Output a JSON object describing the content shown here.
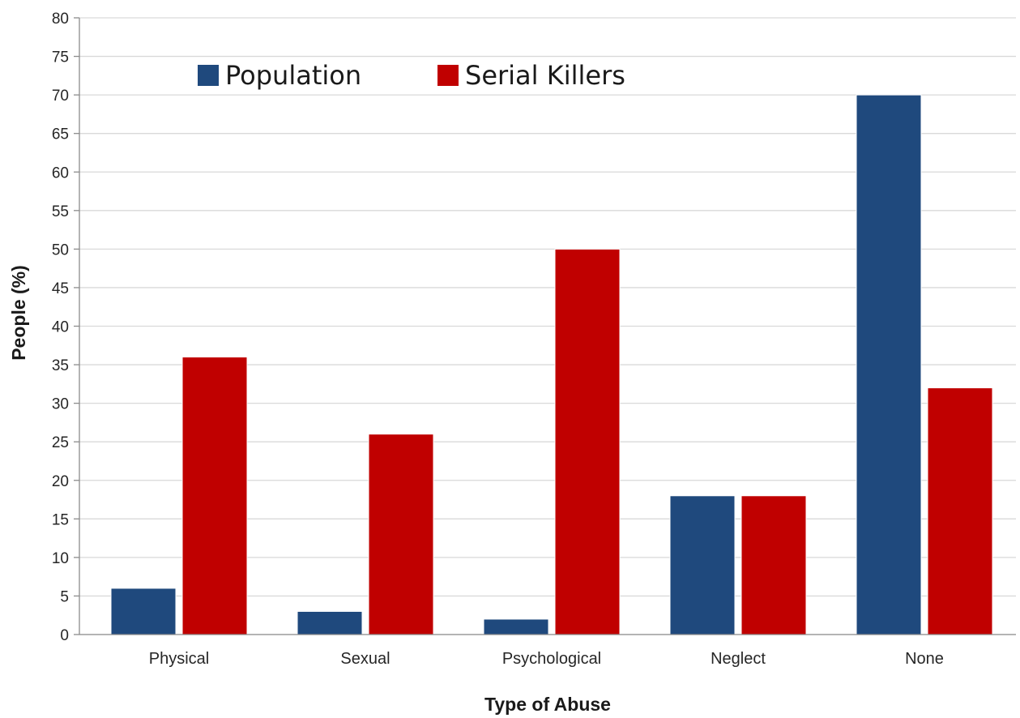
{
  "chart_data": {
    "type": "bar",
    "title": "",
    "xlabel": "Type of Abuse",
    "ylabel": "People (%)",
    "ylim": [
      0,
      80
    ],
    "ytick_step": 5,
    "grid": true,
    "legend_position": "top-left",
    "categories": [
      "Physical",
      "Sexual",
      "Psychological",
      "Neglect",
      "None"
    ],
    "series": [
      {
        "name": "Population",
        "color": "#1f497d",
        "values": [
          6,
          3,
          2,
          18,
          70
        ]
      },
      {
        "name": "Serial Killers",
        "color": "#c00000",
        "values": [
          36,
          26,
          50,
          18,
          32
        ]
      }
    ]
  }
}
